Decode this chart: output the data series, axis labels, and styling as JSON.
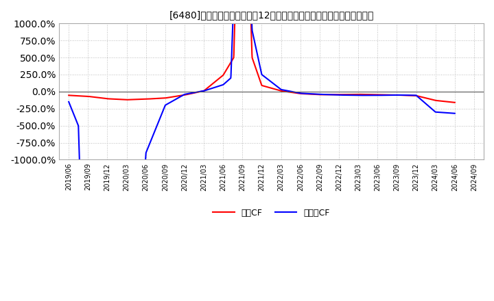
{
  "title": "[6480]　キャッシュフローの12か月移動合計の対前年同期増減率の推移",
  "ylim": [
    -1000,
    1000
  ],
  "yticks": [
    -1000,
    -750,
    -500,
    -250,
    0,
    250,
    500,
    750,
    1000
  ],
  "background_color": "#ffffff",
  "plot_bg_color": "#ffffff",
  "grid_color": "#bbbbbb",
  "legend_labels": [
    "営業CF",
    "フリーCF"
  ],
  "line_colors": [
    "#ff0000",
    "#0000ff"
  ],
  "operating_cf_x": [
    0,
    1,
    2,
    3,
    4,
    5,
    6,
    7,
    8,
    8.55,
    9.0,
    9.5,
    10,
    11,
    12,
    13,
    14,
    15,
    16,
    17,
    18,
    19,
    20
  ],
  "operating_cf_y": [
    -55,
    -70,
    -105,
    -120,
    -110,
    -95,
    -50,
    10,
    240,
    500,
    5000,
    500,
    90,
    10,
    -30,
    -45,
    -45,
    -40,
    -45,
    -50,
    -60,
    -130,
    -160
  ],
  "free_cf_x": [
    0,
    0.5,
    1.0,
    1.5,
    2.0,
    3,
    4,
    5,
    6,
    7,
    8,
    8.4,
    9.0,
    9.5,
    10,
    11,
    12,
    13,
    14,
    15,
    16,
    17,
    18,
    19,
    20
  ],
  "free_cf_y": [
    -150,
    -500,
    -5000,
    -5000,
    -5000,
    -5000,
    -900,
    -200,
    -40,
    10,
    100,
    200,
    5000,
    900,
    250,
    30,
    -25,
    -40,
    -50,
    -55,
    -55,
    -50,
    -55,
    -300,
    -320
  ],
  "x_tick_labels": [
    "2019/06",
    "2019/09",
    "2019/12",
    "2020/03",
    "2020/06",
    "2020/09",
    "2020/12",
    "2021/03",
    "2021/06",
    "2021/09",
    "2021/12",
    "2022/03",
    "2022/06",
    "2022/09",
    "2022/12",
    "2023/03",
    "2023/06",
    "2023/09",
    "2023/12",
    "2024/03",
    "2024/06",
    "2024/09"
  ]
}
